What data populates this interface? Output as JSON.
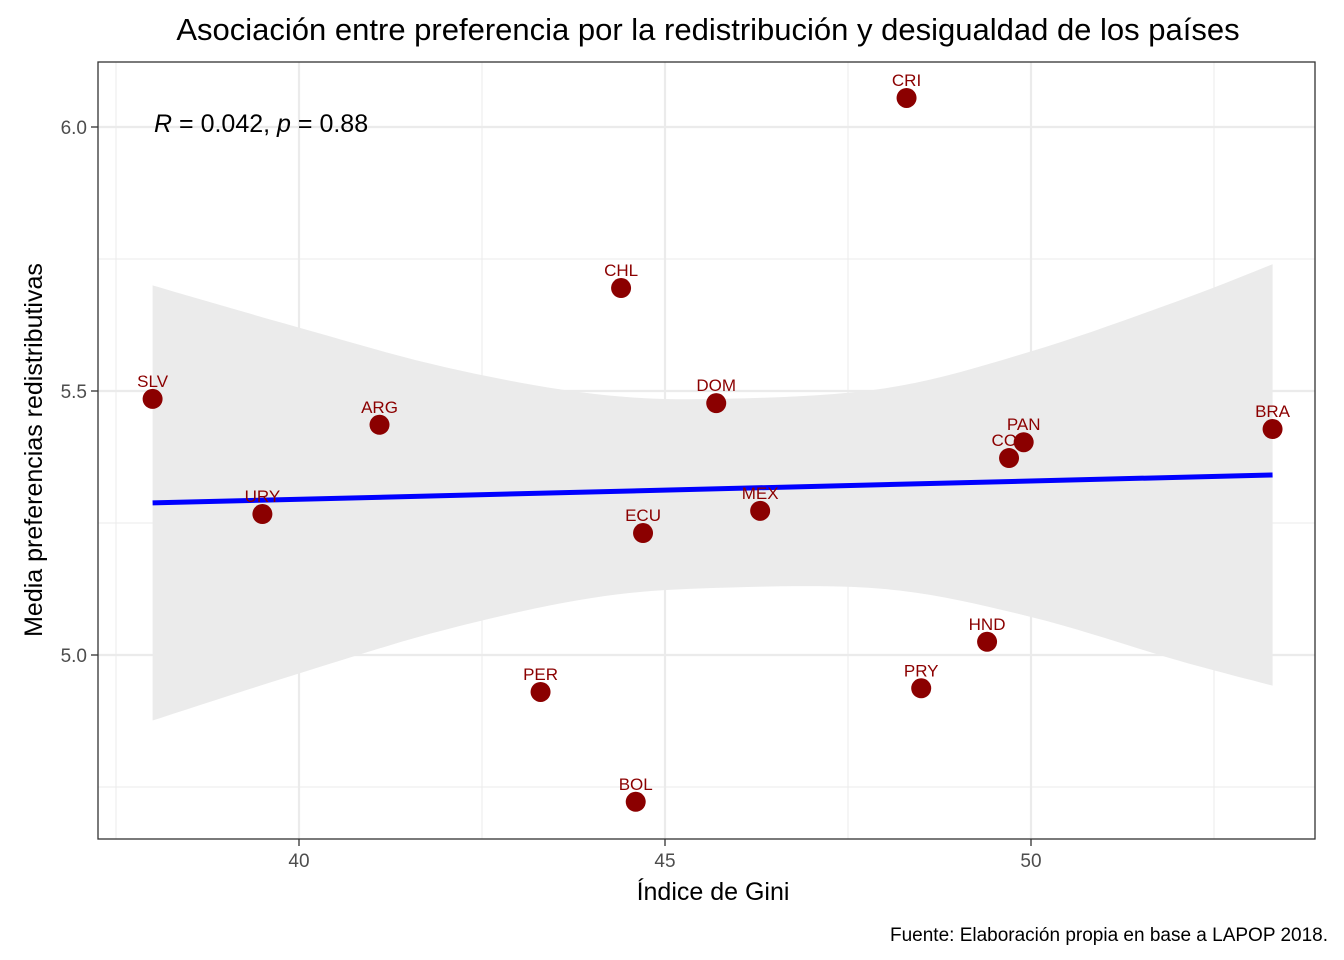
{
  "chart_data": {
    "type": "scatter",
    "title": "Asociación entre preferencia por la redistribución y desigualdad de los países",
    "xlabel": "Índice de Gini",
    "ylabel": "Media preferencias redistributivas",
    "caption": "Fuente: Elaboración propia en base a LAPOP 2018.",
    "xlim": [
      37.5,
      53.8
    ],
    "ylim": [
      4.66,
      6.12
    ],
    "x_ticks": [
      40,
      45,
      50
    ],
    "x_tick_labels": [
      "40",
      "45",
      "50"
    ],
    "y_ticks": [
      5.0,
      5.5,
      6.0
    ],
    "y_tick_labels": [
      "5.0",
      "5.5",
      "6.0"
    ],
    "x_minor_grid": [
      37.5,
      42.5,
      47.5,
      52.5
    ],
    "y_minor_grid": [
      4.75,
      5.25,
      5.75
    ],
    "grid": true,
    "annotation": {
      "r_label": "R",
      "r_value": "0.042",
      "p_label": "p",
      "p_value": "0.88"
    },
    "points": [
      {
        "label": "CRI",
        "x": 48.3,
        "y": 6.055
      },
      {
        "label": "CHL",
        "x": 44.4,
        "y": 5.695
      },
      {
        "label": "SLV",
        "x": 38.0,
        "y": 5.485
      },
      {
        "label": "DOM",
        "x": 45.7,
        "y": 5.477
      },
      {
        "label": "ARG",
        "x": 41.1,
        "y": 5.436
      },
      {
        "label": "BRA",
        "x": 53.3,
        "y": 5.428
      },
      {
        "label": "PAN",
        "x": 49.9,
        "y": 5.403
      },
      {
        "label": "COL",
        "x": 49.7,
        "y": 5.373
      },
      {
        "label": "MEX",
        "x": 46.3,
        "y": 5.273
      },
      {
        "label": "URY",
        "x": 39.5,
        "y": 5.267
      },
      {
        "label": "ECU",
        "x": 44.7,
        "y": 5.231
      },
      {
        "label": "HND",
        "x": 49.4,
        "y": 5.025
      },
      {
        "label": "PRY",
        "x": 48.5,
        "y": 4.937
      },
      {
        "label": "PER",
        "x": 43.3,
        "y": 4.93
      },
      {
        "label": "BOL",
        "x": 44.6,
        "y": 4.722
      }
    ],
    "regression": {
      "x": [
        38.0,
        53.3
      ],
      "y": [
        5.288,
        5.341
      ]
    },
    "confidence_band": {
      "x": [
        38.0,
        40.0,
        42.0,
        44.0,
        45.7,
        48.0,
        50.0,
        52.0,
        53.3
      ],
      "upper": [
        5.7,
        5.62,
        5.545,
        5.495,
        5.485,
        5.505,
        5.575,
        5.67,
        5.74
      ],
      "lower": [
        4.876,
        4.965,
        5.048,
        5.108,
        5.127,
        5.125,
        5.072,
        4.99,
        4.942
      ]
    },
    "colors": {
      "point": "#8b0000",
      "label": "#8b0000",
      "line": "#0000ff",
      "band": "#ebebeb",
      "grid": "#ebebeb",
      "panel_border": "#333333",
      "tick_text": "#4d4d4d"
    }
  }
}
